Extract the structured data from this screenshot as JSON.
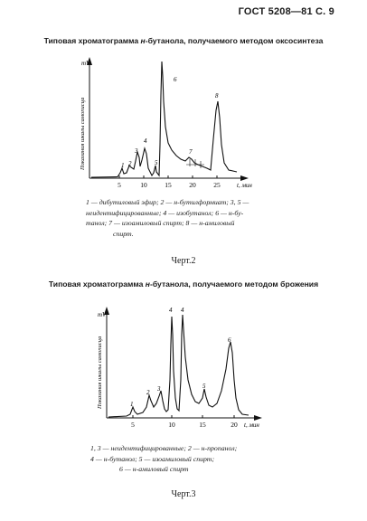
{
  "header": {
    "page_ref": "ГОСТ 5208—81 С. 9"
  },
  "figure1": {
    "title_pre": "Типовая хроматограмма ",
    "title_italic": "н",
    "title_post": "-бутанола, получаемого методом оксосинтеза",
    "y_unit": "mV",
    "y_axis_label": "Показания шкалы самописца",
    "x_axis_label": "t, мин",
    "x_ticks": [
      "5",
      "10",
      "15",
      "20",
      "25"
    ],
    "peak_labels": [
      "1",
      "2",
      "3",
      "4",
      "5",
      "6",
      "7",
      "8"
    ],
    "caption_lines": [
      "1 — дибутиловый эфир; 2 — н-бутилформиат; 3, 5 —",
      "неидентифицированные; 4 — изобутанол; 6 — н-бу-",
      "танол; 7 — изоамиловый спирт; 8 — н-амиловый",
      "спирт."
    ],
    "label": "Черт.2"
  },
  "figure2": {
    "title_pre": "Типовая хроматограмма ",
    "title_italic": "н",
    "title_post": "-бутанола, получаемого методом брожения",
    "y_unit": "mV",
    "y_axis_label": "Показания шкалы самописца",
    "x_axis_label": "t, мин",
    "x_ticks": [
      "5",
      "10",
      "15",
      "20"
    ],
    "peak_labels": [
      "1",
      "2",
      "3",
      "4",
      "4",
      "5",
      "6"
    ],
    "caption_lines": [
      "1, 3 — неидентифицированные; 2 — н-пропанол;",
      "4 — н-бутанол; 5 — изоамиловый спирт;",
      "6 — н-амиловый спирт"
    ],
    "label": "Черт.3"
  }
}
